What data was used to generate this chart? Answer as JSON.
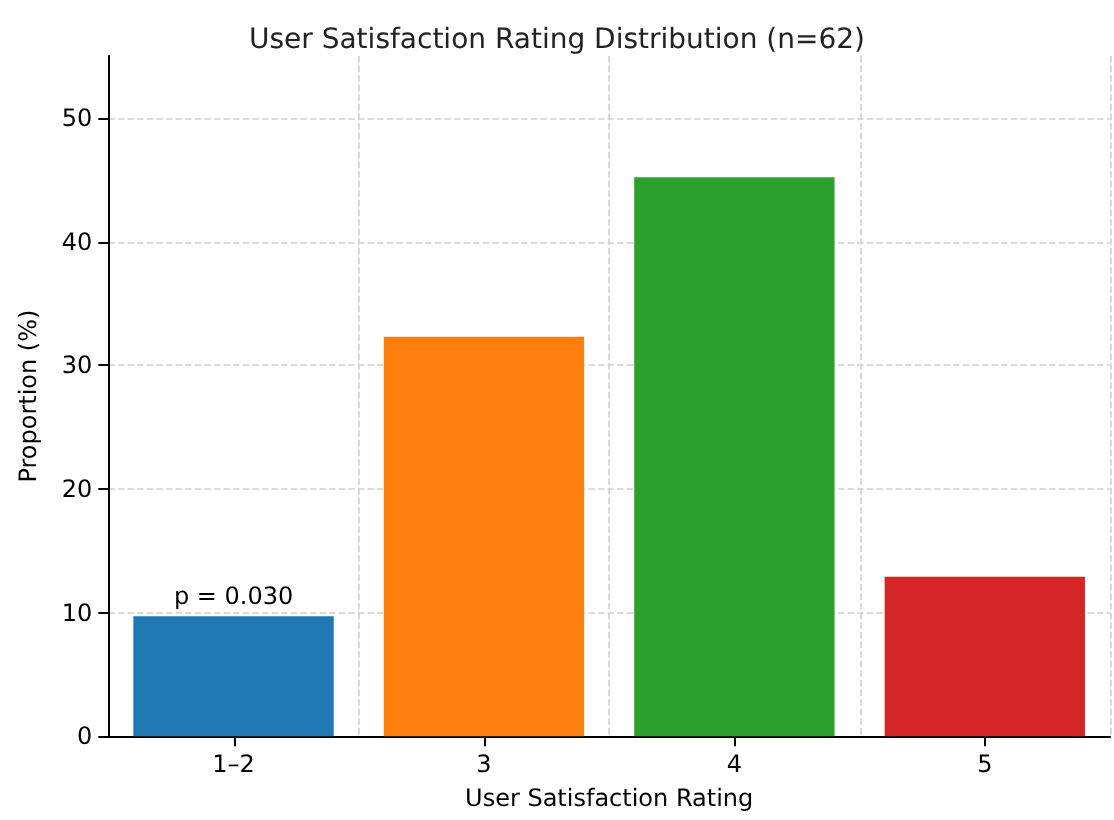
{
  "chart_data": {
    "type": "bar",
    "title": "User Satisfaction Rating Distribution (n=62)",
    "xlabel": "User Satisfaction Rating",
    "ylabel": "Proportion (%)",
    "categories": [
      "1–2",
      "3",
      "4",
      "5"
    ],
    "values": [
      9.7,
      32.3,
      45.2,
      12.9
    ],
    "colors": [
      "#1f77b4",
      "#ff7f0e",
      "#2ca02c",
      "#d62728"
    ],
    "ylim": [
      0,
      55
    ],
    "yticks": [
      0,
      10,
      20,
      30,
      40,
      50
    ],
    "grid": true,
    "annotations": [
      {
        "text": "p = 0.030",
        "x": "1–2",
        "y": 9.7
      }
    ]
  }
}
